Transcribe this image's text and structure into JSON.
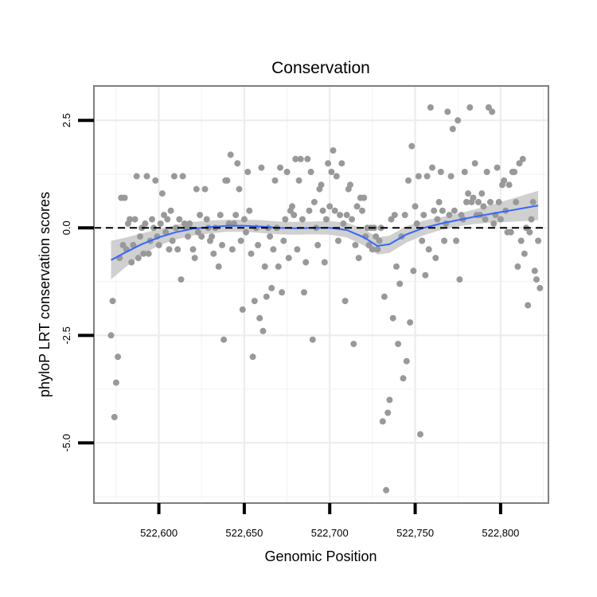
{
  "chart_data": {
    "type": "scatter",
    "title": "Conservation",
    "xlabel": "Genomic Position",
    "ylabel": "phyloP LRT conservation scores",
    "xlim": [
      522562,
      522828
    ],
    "ylim": [
      -6.4,
      3.3
    ],
    "x_ticks": [
      522600,
      522650,
      522700,
      522750,
      522800
    ],
    "x_tick_labels": [
      "522,600",
      "522,650",
      "522,700",
      "522,750",
      "522,800"
    ],
    "y_ticks": [
      2.5,
      0.0,
      -2.5,
      -5.0
    ],
    "y_tick_labels": [
      "2.5",
      "0.0",
      "-2.5",
      "-5.0"
    ],
    "grid": true,
    "reference_line": {
      "y": 0.0,
      "style": "dashed"
    },
    "point_color": "#999999",
    "trend_color": "#3366FF",
    "band_color": "#C8C8C8",
    "points": [
      [
        522572,
        -2.5
      ],
      [
        522573,
        -1.7
      ],
      [
        522574,
        -4.4
      ],
      [
        522575,
        -3.6
      ],
      [
        522576,
        -3.0
      ],
      [
        522577,
        -0.7
      ],
      [
        522578,
        0.7
      ],
      [
        522579,
        -0.4
      ],
      [
        522580,
        0.7
      ],
      [
        522581,
        -0.5
      ],
      [
        522582,
        0.1
      ],
      [
        522583,
        0.2
      ],
      [
        522584,
        -0.8
      ],
      [
        522585,
        -0.4
      ],
      [
        522586,
        0.2
      ],
      [
        522587,
        1.2
      ],
      [
        522588,
        -0.7
      ],
      [
        522589,
        -0.2
      ],
      [
        522590,
        0.0
      ],
      [
        522591,
        -0.6
      ],
      [
        522592,
        0.1
      ],
      [
        522593,
        1.2
      ],
      [
        522594,
        -0.6
      ],
      [
        522595,
        -0.3
      ],
      [
        522596,
        0.2
      ],
      [
        522597,
        0.0
      ],
      [
        522598,
        1.1
      ],
      [
        522599,
        -0.2
      ],
      [
        522600,
        -0.4
      ],
      [
        522601,
        0.1
      ],
      [
        522602,
        0.8
      ],
      [
        522603,
        0.3
      ],
      [
        522604,
        -0.1
      ],
      [
        522605,
        0.2
      ],
      [
        522606,
        -0.5
      ],
      [
        522607,
        0.4
      ],
      [
        522608,
        -0.3
      ],
      [
        522609,
        1.2
      ],
      [
        522610,
        0.0
      ],
      [
        522611,
        -0.5
      ],
      [
        522612,
        0.2
      ],
      [
        522613,
        -1.2
      ],
      [
        522614,
        1.2
      ],
      [
        522615,
        0.1
      ],
      [
        522616,
        0.0
      ],
      [
        522617,
        -0.2
      ],
      [
        522618,
        0.1
      ],
      [
        522620,
        -0.5
      ],
      [
        522621,
        -0.7
      ],
      [
        522622,
        0.9
      ],
      [
        522623,
        -0.1
      ],
      [
        522624,
        0.3
      ],
      [
        522625,
        -0.2
      ],
      [
        522627,
        0.9
      ],
      [
        522628,
        0.2
      ],
      [
        522629,
        0.0
      ],
      [
        522630,
        -0.3
      ],
      [
        522631,
        -0.2
      ],
      [
        522632,
        -0.6
      ],
      [
        522633,
        0.0
      ],
      [
        522635,
        -0.9
      ],
      [
        522636,
        0.3
      ],
      [
        522637,
        -0.4
      ],
      [
        522638,
        -2.6
      ],
      [
        522639,
        1.1
      ],
      [
        522640,
        1.1
      ],
      [
        522641,
        0.1
      ],
      [
        522642,
        1.7
      ],
      [
        522643,
        -0.5
      ],
      [
        522644,
        0.1
      ],
      [
        522645,
        0.3
      ],
      [
        522646,
        1.5
      ],
      [
        522647,
        0.9
      ],
      [
        522648,
        -0.3
      ],
      [
        522649,
        -1.9
      ],
      [
        522650,
        0.2
      ],
      [
        522651,
        -0.1
      ],
      [
        522652,
        1.3
      ],
      [
        522653,
        0.4
      ],
      [
        522654,
        -0.6
      ],
      [
        522655,
        -3.0
      ],
      [
        522656,
        -1.7
      ],
      [
        522657,
        0.0
      ],
      [
        522658,
        -0.4
      ],
      [
        522659,
        -2.1
      ],
      [
        522660,
        1.4
      ],
      [
        522661,
        -2.4
      ],
      [
        522662,
        -0.9
      ],
      [
        522663,
        -1.6
      ],
      [
        522664,
        0.0
      ],
      [
        522665,
        -0.2
      ],
      [
        522666,
        -1.4
      ],
      [
        522667,
        -0.5
      ],
      [
        522668,
        1.1
      ],
      [
        522669,
        0.0
      ],
      [
        522670,
        -0.9
      ],
      [
        522671,
        1.4
      ],
      [
        522672,
        -1.5
      ],
      [
        522673,
        -0.3
      ],
      [
        522674,
        0.2
      ],
      [
        522675,
        1.3
      ],
      [
        522676,
        -0.7
      ],
      [
        522677,
        0.4
      ],
      [
        522678,
        0.5
      ],
      [
        522679,
        0.3
      ],
      [
        522680,
        1.6
      ],
      [
        522681,
        -0.5
      ],
      [
        522682,
        1.1
      ],
      [
        522683,
        1.6
      ],
      [
        522684,
        0.2
      ],
      [
        522685,
        -1.5
      ],
      [
        522686,
        -0.8
      ],
      [
        522687,
        1.6
      ],
      [
        522688,
        0.4
      ],
      [
        522689,
        1.3
      ],
      [
        522690,
        -2.6
      ],
      [
        522691,
        0.6
      ],
      [
        522692,
        0.0
      ],
      [
        522693,
        -0.4
      ],
      [
        522694,
        0.9
      ],
      [
        522695,
        1.0
      ],
      [
        522696,
        0.4
      ],
      [
        522697,
        -0.8
      ],
      [
        522698,
        0.2
      ],
      [
        522699,
        1.5
      ],
      [
        522700,
        0.5
      ],
      [
        522701,
        1.3
      ],
      [
        522702,
        1.8
      ],
      [
        522703,
        0.4
      ],
      [
        522704,
        1.2
      ],
      [
        522705,
        -0.3
      ],
      [
        522706,
        0.3
      ],
      [
        522707,
        1.5
      ],
      [
        522708,
        0.1
      ],
      [
        522709,
        -1.7
      ],
      [
        522710,
        0.3
      ],
      [
        522711,
        0.9
      ],
      [
        522712,
        1.0
      ],
      [
        522713,
        0.2
      ],
      [
        522714,
        -2.7
      ],
      [
        522715,
        -0.4
      ],
      [
        522716,
        0.5
      ],
      [
        522717,
        -0.7
      ],
      [
        522718,
        0.7
      ],
      [
        522719,
        0.4
      ],
      [
        522720,
        0.7
      ],
      [
        522721,
        -0.2
      ],
      [
        522722,
        0.0
      ],
      [
        522723,
        -0.4
      ],
      [
        522724,
        0.0
      ],
      [
        522725,
        -0.5
      ],
      [
        522726,
        0.0
      ],
      [
        522727,
        -0.2
      ],
      [
        522728,
        -0.5
      ],
      [
        522729,
        -0.3
      ],
      [
        522730,
        0.0
      ],
      [
        522731,
        -4.5
      ],
      [
        522732,
        -1.6
      ],
      [
        522733,
        -6.1
      ],
      [
        522734,
        -4.3
      ],
      [
        522735,
        -4.0
      ],
      [
        522736,
        0.2
      ],
      [
        522737,
        -2.1
      ],
      [
        522738,
        0.3
      ],
      [
        522739,
        -0.9
      ],
      [
        522740,
        -2.7
      ],
      [
        522741,
        -1.3
      ],
      [
        522742,
        -0.2
      ],
      [
        522743,
        -3.5
      ],
      [
        522744,
        0.3
      ],
      [
        522745,
        -3.1
      ],
      [
        522746,
        1.1
      ],
      [
        522747,
        -2.2
      ],
      [
        522748,
        1.9
      ],
      [
        522749,
        -1.0
      ],
      [
        522750,
        0.5
      ],
      [
        522751,
        0.1
      ],
      [
        522752,
        1.2
      ],
      [
        522753,
        -4.8
      ],
      [
        522754,
        -0.3
      ],
      [
        522755,
        0.3
      ],
      [
        522756,
        -1.1
      ],
      [
        522757,
        1.2
      ],
      [
        522758,
        -0.5
      ],
      [
        522759,
        2.8
      ],
      [
        522760,
        1.4
      ],
      [
        522761,
        0.4
      ],
      [
        522762,
        -0.7
      ],
      [
        522763,
        0.2
      ],
      [
        522764,
        0.6
      ],
      [
        522765,
        1.3
      ],
      [
        522766,
        0.4
      ],
      [
        522767,
        -0.3
      ],
      [
        522768,
        0.1
      ],
      [
        522769,
        2.7
      ],
      [
        522770,
        0.3
      ],
      [
        522771,
        1.2
      ],
      [
        522772,
        2.3
      ],
      [
        522773,
        0.4
      ],
      [
        522774,
        -0.3
      ],
      [
        522775,
        2.5
      ],
      [
        522776,
        -1.2
      ],
      [
        522777,
        0.3
      ],
      [
        522778,
        0.2
      ],
      [
        522779,
        1.3
      ],
      [
        522780,
        0.6
      ],
      [
        522781,
        0.8
      ],
      [
        522782,
        2.8
      ],
      [
        522783,
        0.6
      ],
      [
        522784,
        0.7
      ],
      [
        522785,
        1.5
      ],
      [
        522786,
        0.3
      ],
      [
        522787,
        0.6
      ],
      [
        522788,
        0.3
      ],
      [
        522789,
        0.8
      ],
      [
        522790,
        0.5
      ],
      [
        522791,
        0.2
      ],
      [
        522792,
        1.3
      ],
      [
        522793,
        2.8
      ],
      [
        522794,
        0.6
      ],
      [
        522795,
        2.7
      ],
      [
        522796,
        0.1
      ],
      [
        522797,
        0.3
      ],
      [
        522798,
        1.4
      ],
      [
        522799,
        0.6
      ],
      [
        522800,
        0.2
      ],
      [
        522801,
        1.0
      ],
      [
        522802,
        1.1
      ],
      [
        522803,
        0.4
      ],
      [
        522804,
        -0.1
      ],
      [
        522805,
        1.0
      ],
      [
        522806,
        -0.1
      ],
      [
        522807,
        1.3
      ],
      [
        522808,
        1.3
      ],
      [
        522809,
        0.6
      ],
      [
        522810,
        -0.9
      ],
      [
        522811,
        1.5
      ],
      [
        522812,
        -0.3
      ],
      [
        522813,
        1.6
      ],
      [
        522814,
        -0.6
      ],
      [
        522815,
        0.0
      ],
      [
        522816,
        -1.8
      ],
      [
        522817,
        -0.1
      ],
      [
        522818,
        0.2
      ],
      [
        522819,
        0.6
      ],
      [
        522820,
        -1.0
      ],
      [
        522821,
        -1.2
      ],
      [
        522822,
        -0.3
      ],
      [
        522823,
        -1.4
      ]
    ],
    "trend": [
      [
        522572,
        -0.75
      ],
      [
        522580,
        -0.58
      ],
      [
        522590,
        -0.38
      ],
      [
        522600,
        -0.22
      ],
      [
        522610,
        -0.1
      ],
      [
        522620,
        -0.02
      ],
      [
        522630,
        0.02
      ],
      [
        522640,
        0.05
      ],
      [
        522650,
        0.05
      ],
      [
        522660,
        0.03
      ],
      [
        522670,
        0.0
      ],
      [
        522680,
        -0.01
      ],
      [
        522690,
        0.0
      ],
      [
        522700,
        0.0
      ],
      [
        522710,
        -0.05
      ],
      [
        522720,
        -0.22
      ],
      [
        522728,
        -0.42
      ],
      [
        522735,
        -0.38
      ],
      [
        522745,
        -0.15
      ],
      [
        522755,
        0.0
      ],
      [
        522765,
        0.1
      ],
      [
        522775,
        0.18
      ],
      [
        522785,
        0.26
      ],
      [
        522795,
        0.33
      ],
      [
        522805,
        0.4
      ],
      [
        522815,
        0.47
      ],
      [
        522822,
        0.52
      ]
    ],
    "band_halfwidth": [
      [
        522572,
        0.45
      ],
      [
        522580,
        0.35
      ],
      [
        522590,
        0.25
      ],
      [
        522600,
        0.19
      ],
      [
        522610,
        0.17
      ],
      [
        522620,
        0.16
      ],
      [
        522630,
        0.15
      ],
      [
        522640,
        0.14
      ],
      [
        522650,
        0.14
      ],
      [
        522660,
        0.15
      ],
      [
        522670,
        0.15
      ],
      [
        522680,
        0.15
      ],
      [
        522690,
        0.15
      ],
      [
        522700,
        0.16
      ],
      [
        522710,
        0.17
      ],
      [
        522720,
        0.19
      ],
      [
        522728,
        0.2
      ],
      [
        522735,
        0.2
      ],
      [
        522745,
        0.19
      ],
      [
        522755,
        0.17
      ],
      [
        522765,
        0.15
      ],
      [
        522775,
        0.15
      ],
      [
        522785,
        0.17
      ],
      [
        522795,
        0.21
      ],
      [
        522805,
        0.26
      ],
      [
        522815,
        0.31
      ],
      [
        522822,
        0.34
      ]
    ]
  }
}
